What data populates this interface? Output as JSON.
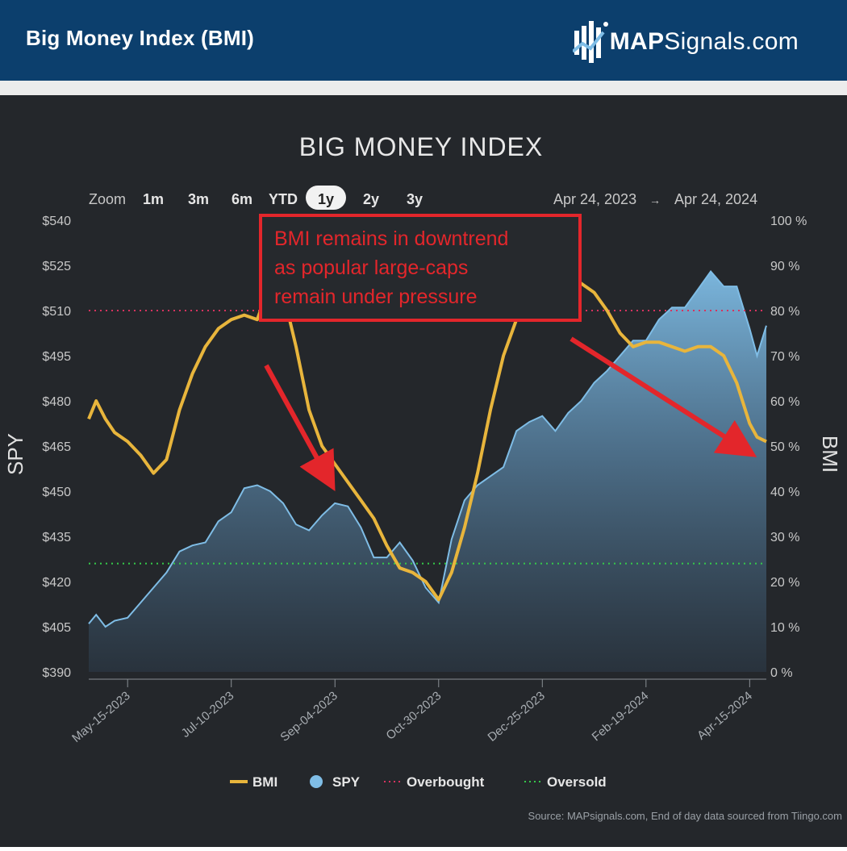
{
  "header": {
    "title": "Big Money Index (BMI)",
    "brand_bold": "MAP",
    "brand_regular": "Signals.com"
  },
  "colors": {
    "header_bg": "#0c3f6d",
    "chart_bg": "#24272b",
    "bmi": "#e8b53c",
    "spy": "#7fbde6",
    "overbought": "#d6335f",
    "oversold": "#35c94a",
    "annotation": "#e3262b"
  },
  "toolbar": {
    "zoom_label": "Zoom",
    "buttons": [
      "1m",
      "3m",
      "6m",
      "YTD",
      "1y",
      "2y",
      "3y"
    ],
    "selected": "1y",
    "range_from": "Apr 24, 2023",
    "range_arrow": "→",
    "range_to": "Apr 24, 2024"
  },
  "annotation": {
    "lines": [
      "BMI remains in downtrend",
      "as popular large-caps",
      "remain under pressure"
    ]
  },
  "chart_data": {
    "type": "line",
    "title": "BIG MONEY INDEX",
    "y_left": {
      "label": "SPY",
      "min": 390,
      "max": 540,
      "ticks": [
        "$540",
        "$525",
        "$510",
        "$495",
        "$480",
        "$465",
        "$450",
        "$435",
        "$420",
        "$405",
        "$390"
      ]
    },
    "y_right": {
      "label": "BMI",
      "min": 0,
      "max": 100,
      "ticks": [
        "100 %",
        "90 %",
        "80 %",
        "70 %",
        "60 %",
        "50 %",
        "40 %",
        "30 %",
        "20 %",
        "10 %",
        "0 %"
      ]
    },
    "x_ticks": [
      "May-15-2023",
      "Jul-10-2023",
      "Sep-04-2023",
      "Oct-30-2023",
      "Dec-25-2023",
      "Feb-19-2024",
      "Apr-15-2024"
    ],
    "x_range": [
      "2023-04-24",
      "2024-04-24"
    ],
    "legend": {
      "placement": "bottom",
      "items": [
        "BMI",
        "SPY",
        "Overbought",
        "Oversold"
      ]
    },
    "thresholds": {
      "overbought": 80,
      "oversold": 24
    },
    "series": [
      {
        "name": "BMI",
        "axis": "right",
        "points": [
          [
            "2023-04-24",
            56
          ],
          [
            "2023-04-28",
            60
          ],
          [
            "2023-05-03",
            56
          ],
          [
            "2023-05-08",
            53
          ],
          [
            "2023-05-15",
            51
          ],
          [
            "2023-05-22",
            48
          ],
          [
            "2023-05-29",
            44
          ],
          [
            "2023-06-05",
            47
          ],
          [
            "2023-06-12",
            58
          ],
          [
            "2023-06-19",
            66
          ],
          [
            "2023-06-26",
            72
          ],
          [
            "2023-07-03",
            76
          ],
          [
            "2023-07-10",
            78
          ],
          [
            "2023-07-17",
            79
          ],
          [
            "2023-07-24",
            78
          ],
          [
            "2023-07-31",
            86
          ],
          [
            "2023-08-07",
            84
          ],
          [
            "2023-08-14",
            72
          ],
          [
            "2023-08-21",
            58
          ],
          [
            "2023-08-28",
            50
          ],
          [
            "2023-09-04",
            46
          ],
          [
            "2023-09-11",
            42
          ],
          [
            "2023-09-18",
            38
          ],
          [
            "2023-09-25",
            34
          ],
          [
            "2023-10-02",
            28
          ],
          [
            "2023-10-09",
            23
          ],
          [
            "2023-10-16",
            22
          ],
          [
            "2023-10-23",
            20
          ],
          [
            "2023-10-30",
            16
          ],
          [
            "2023-11-06",
            22
          ],
          [
            "2023-11-13",
            32
          ],
          [
            "2023-11-20",
            44
          ],
          [
            "2023-11-27",
            58
          ],
          [
            "2023-12-04",
            70
          ],
          [
            "2023-12-11",
            78
          ],
          [
            "2023-12-18",
            84
          ],
          [
            "2023-12-25",
            90
          ],
          [
            "2024-01-01",
            90
          ],
          [
            "2024-01-08",
            88
          ],
          [
            "2024-01-15",
            86
          ],
          [
            "2024-01-22",
            84
          ],
          [
            "2024-01-29",
            80
          ],
          [
            "2024-02-05",
            75
          ],
          [
            "2024-02-12",
            72
          ],
          [
            "2024-02-19",
            73
          ],
          [
            "2024-02-26",
            73
          ],
          [
            "2024-03-04",
            72
          ],
          [
            "2024-03-11",
            71
          ],
          [
            "2024-03-18",
            72
          ],
          [
            "2024-03-25",
            72
          ],
          [
            "2024-04-01",
            70
          ],
          [
            "2024-04-08",
            64
          ],
          [
            "2024-04-15",
            55
          ],
          [
            "2024-04-19",
            52
          ],
          [
            "2024-04-24",
            51
          ]
        ]
      },
      {
        "name": "SPY",
        "axis": "left",
        "points": [
          [
            "2023-04-24",
            406
          ],
          [
            "2023-04-28",
            409
          ],
          [
            "2023-05-03",
            405
          ],
          [
            "2023-05-08",
            407
          ],
          [
            "2023-05-15",
            408
          ],
          [
            "2023-05-22",
            413
          ],
          [
            "2023-05-29",
            418
          ],
          [
            "2023-06-05",
            423
          ],
          [
            "2023-06-12",
            430
          ],
          [
            "2023-06-19",
            432
          ],
          [
            "2023-06-26",
            433
          ],
          [
            "2023-07-03",
            440
          ],
          [
            "2023-07-10",
            443
          ],
          [
            "2023-07-17",
            451
          ],
          [
            "2023-07-24",
            452
          ],
          [
            "2023-07-31",
            450
          ],
          [
            "2023-08-07",
            446
          ],
          [
            "2023-08-14",
            439
          ],
          [
            "2023-08-21",
            437
          ],
          [
            "2023-08-28",
            442
          ],
          [
            "2023-09-04",
            446
          ],
          [
            "2023-09-11",
            445
          ],
          [
            "2023-09-18",
            438
          ],
          [
            "2023-09-25",
            428
          ],
          [
            "2023-10-02",
            428
          ],
          [
            "2023-10-09",
            433
          ],
          [
            "2023-10-16",
            427
          ],
          [
            "2023-10-23",
            418
          ],
          [
            "2023-10-30",
            413
          ],
          [
            "2023-11-06",
            434
          ],
          [
            "2023-11-13",
            447
          ],
          [
            "2023-11-20",
            452
          ],
          [
            "2023-11-27",
            455
          ],
          [
            "2023-12-04",
            458
          ],
          [
            "2023-12-11",
            470
          ],
          [
            "2023-12-18",
            473
          ],
          [
            "2023-12-25",
            475
          ],
          [
            "2024-01-01",
            470
          ],
          [
            "2024-01-08",
            476
          ],
          [
            "2024-01-15",
            480
          ],
          [
            "2024-01-22",
            486
          ],
          [
            "2024-01-29",
            490
          ],
          [
            "2024-02-05",
            495
          ],
          [
            "2024-02-12",
            500
          ],
          [
            "2024-02-19",
            500
          ],
          [
            "2024-02-26",
            507
          ],
          [
            "2024-03-04",
            511
          ],
          [
            "2024-03-11",
            511
          ],
          [
            "2024-03-18",
            517
          ],
          [
            "2024-03-25",
            523
          ],
          [
            "2024-04-01",
            518
          ],
          [
            "2024-04-08",
            518
          ],
          [
            "2024-04-15",
            504
          ],
          [
            "2024-04-19",
            495
          ],
          [
            "2024-04-24",
            505
          ]
        ]
      }
    ]
  },
  "source": "Source: MAPsignals.com, End of day data sourced from Tiingo.com"
}
